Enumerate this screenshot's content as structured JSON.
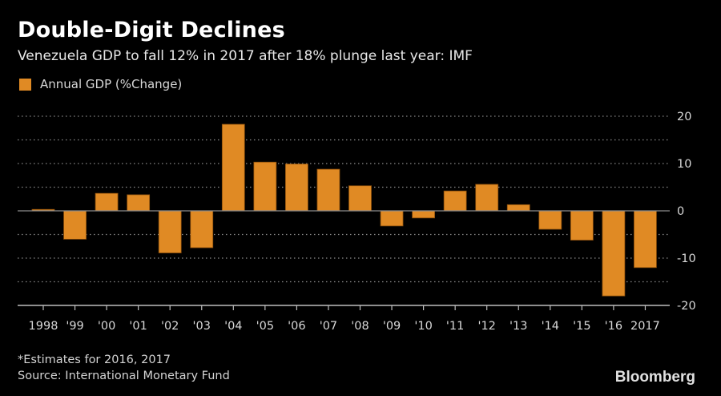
{
  "header": {
    "title": "Double-Digit Declines",
    "subtitle": "Venezuela GDP to fall 12% in 2017 after 18% plunge last year: IMF"
  },
  "footer": {
    "footnote": "*Estimates for 2016, 2017",
    "source": "Source: International Monetary Fund",
    "brand": "Bloomberg"
  },
  "colors": {
    "bar": "#e08a24",
    "background": "#000000",
    "grid": "#8a8a8a"
  },
  "chart_data": {
    "type": "bar",
    "title": "Double-Digit Declines",
    "subtitle": "Venezuela GDP to fall 12% in 2017 after 18% plunge last year: IMF",
    "xlabel": "",
    "ylabel": "",
    "legend": {
      "entries": [
        "Annual GDP (%Change)"
      ],
      "placement": "top-left"
    },
    "categories": [
      "1998",
      "'99",
      "'00",
      "'01",
      "'02",
      "'03",
      "'04",
      "'05",
      "'06",
      "'07",
      "'08",
      "'09",
      "'10",
      "'11",
      "'12",
      "'13",
      "'14",
      "'15",
      "'16",
      "2017"
    ],
    "series": [
      {
        "name": "Annual GDP (%Change)",
        "values": [
          0.3,
          -6.0,
          3.7,
          3.4,
          -8.9,
          -7.8,
          18.3,
          10.3,
          9.9,
          8.8,
          5.3,
          -3.2,
          -1.5,
          4.2,
          5.6,
          1.3,
          -3.9,
          -6.2,
          -18.0,
          -12.0
        ]
      }
    ],
    "ylim": [
      -20,
      20
    ],
    "yticks": [
      20,
      10,
      0,
      -10,
      -20
    ],
    "ytick_labels": [
      "20",
      "10",
      "0",
      "-10",
      "-20"
    ],
    "grid": true,
    "grid_step": 5,
    "y_axis_side": "right",
    "notes": [
      "*Estimates for 2016, 2017",
      "Source: International Monetary Fund"
    ]
  }
}
